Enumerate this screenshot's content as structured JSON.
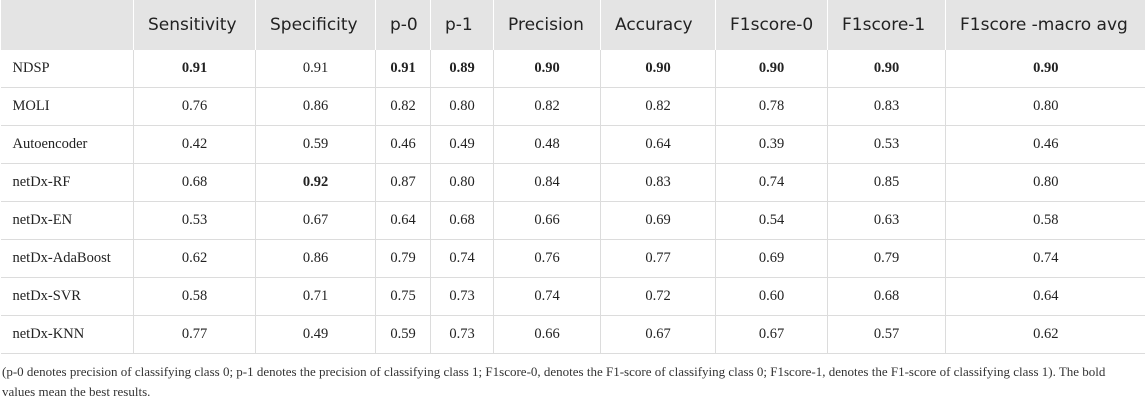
{
  "table": {
    "header": [
      "Sensitivity",
      "Specificity",
      "p-0",
      "p-1",
      "Precision",
      "Accuracy",
      "F1score-0",
      "F1score-1",
      "F1score -macro avg"
    ],
    "rows": [
      {
        "label": "NDSP",
        "cells": [
          {
            "text": "0.91",
            "bold": true
          },
          "0.91",
          {
            "text": "0.91",
            "bold": true
          },
          {
            "text": "0.89",
            "bold": true
          },
          {
            "text": "0.90",
            "bold": true
          },
          {
            "text": "0.90",
            "bold": true
          },
          {
            "text": "0.90",
            "bold": true
          },
          {
            "text": "0.90",
            "bold": true
          },
          {
            "text": "0.90",
            "bold": true
          }
        ]
      },
      {
        "label": "MOLI",
        "cells": [
          "0.76",
          "0.86",
          "0.82",
          "0.80",
          "0.82",
          "0.82",
          "0.78",
          "0.83",
          "0.80"
        ]
      },
      {
        "label": "Autoencoder",
        "cells": [
          "0.42",
          "0.59",
          "0.46",
          "0.49",
          "0.48",
          "0.64",
          "0.39",
          "0.53",
          "0.46"
        ]
      },
      {
        "label": "netDx-RF",
        "cells": [
          "0.68",
          {
            "text": "0.92",
            "bold": true
          },
          "0.87",
          "0.80",
          "0.84",
          "0.83",
          "0.74",
          "0.85",
          "0.80"
        ]
      },
      {
        "label": "netDx-EN",
        "cells": [
          "0.53",
          "0.67",
          "0.64",
          "0.68",
          "0.66",
          "0.69",
          "0.54",
          "0.63",
          "0.58"
        ]
      },
      {
        "label": "netDx-AdaBoost",
        "cells": [
          "0.62",
          "0.86",
          "0.79",
          "0.74",
          "0.76",
          "0.77",
          "0.69",
          "0.79",
          "0.74"
        ]
      },
      {
        "label": "netDx-SVR",
        "cells": [
          "0.58",
          "0.71",
          "0.75",
          "0.73",
          "0.74",
          "0.72",
          "0.60",
          "0.68",
          "0.64"
        ]
      },
      {
        "label": "netDx-KNN",
        "cells": [
          "0.77",
          "0.49",
          "0.59",
          "0.73",
          "0.66",
          "0.67",
          "0.67",
          "0.57",
          "0.62"
        ]
      }
    ]
  },
  "footnote": "(p-0 denotes precision of classifying class 0; p-1 denotes the precision of classifying class 1; F1score-0, denotes the F1-score of classifying class 0; F1score-1, denotes the F1-score of classifying class 1). The bold values mean the best results."
}
